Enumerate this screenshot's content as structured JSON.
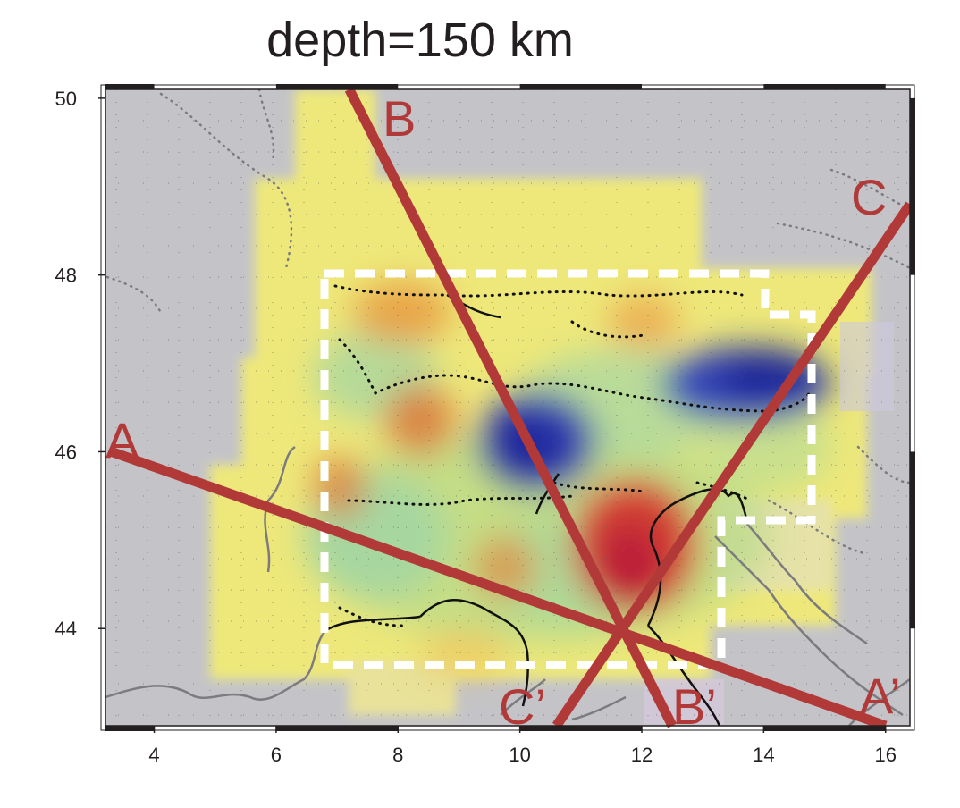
{
  "title": "depth=150 km",
  "x_axis": {
    "ticks": [
      4,
      6,
      8,
      10,
      12,
      14,
      16
    ]
  },
  "y_axis": {
    "ticks": [
      44,
      46,
      48,
      50
    ]
  },
  "profiles": [
    {
      "start_label": "A",
      "end_label": "A’",
      "start": [
        3.3,
        46.0
      ],
      "end": [
        16.0,
        42.9
      ]
    },
    {
      "start_label": "B",
      "end_label": "B’",
      "start": [
        7.2,
        50.1
      ],
      "end": [
        12.5,
        42.9
      ]
    },
    {
      "start_label": "C",
      "end_label": "C’",
      "start": [
        16.4,
        48.8
      ],
      "end": [
        10.6,
        42.9
      ]
    }
  ],
  "colors": {
    "profile_line": "#b13a39",
    "background": "#c4c4c8",
    "positive_anomaly": "#c8202a",
    "negative_anomaly": "#1e2ea6",
    "neutral": "#eee87a",
    "study_area_outline": "#ffffff"
  }
}
